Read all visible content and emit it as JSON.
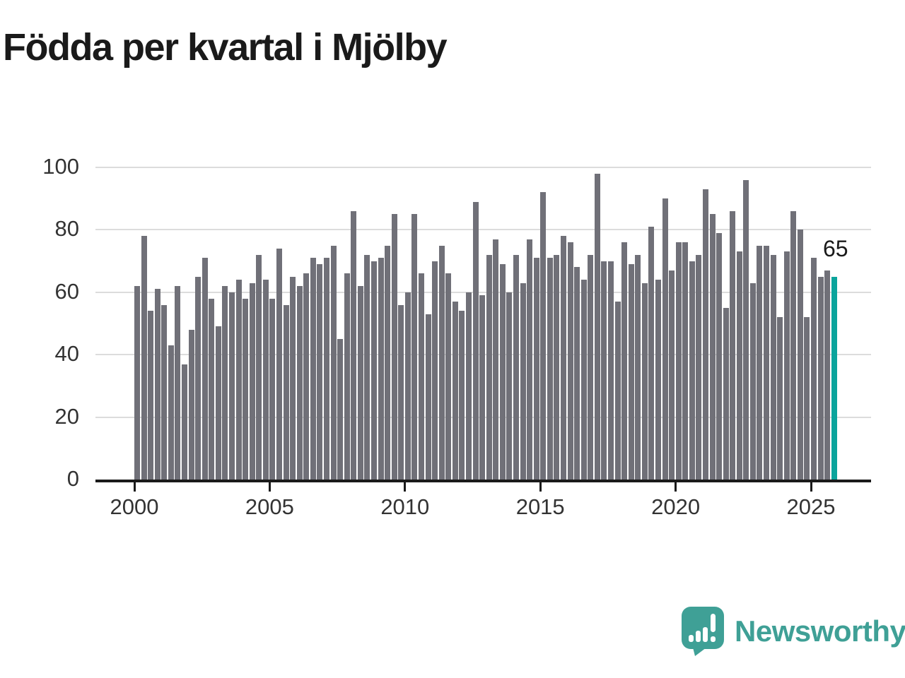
{
  "title": "Födda per kvartal i Mjölby",
  "annotation": {
    "last_value_label": "65"
  },
  "branding": {
    "name": "Newsworthy",
    "icon": "newsworthy-speech-bubble-chart-icon"
  },
  "colors": {
    "bar": "#707078",
    "highlight": "#0BA49C",
    "grid": "#dcdcdc",
    "axis": "#1a1a1a",
    "tick_label": "#333333",
    "title": "#1a1a1a",
    "brand": "#3FA096",
    "background": "#ffffff"
  },
  "chart_data": {
    "type": "bar",
    "title": "Födda per kvartal i Mjölby",
    "xlabel": "",
    "ylabel": "",
    "ylim": [
      0,
      100
    ],
    "grid": "horizontal",
    "y_ticks": [
      0,
      20,
      40,
      60,
      80,
      100
    ],
    "x_tick_labels": [
      "2000",
      "2005",
      "2010",
      "2015",
      "2020",
      "2025"
    ],
    "start_period": "2000-Q1",
    "end_period": "2025-Q4",
    "quarters_per_year": 4,
    "start_year": 2000,
    "highlight_last_bar": true,
    "last_value_label": "65",
    "values": [
      62,
      78,
      54,
      61,
      56,
      43,
      62,
      37,
      48,
      65,
      71,
      58,
      49,
      62,
      60,
      64,
      58,
      63,
      72,
      64,
      58,
      74,
      56,
      65,
      62,
      66,
      71,
      69,
      71,
      75,
      45,
      66,
      86,
      62,
      72,
      70,
      71,
      75,
      85,
      56,
      60,
      85,
      66,
      53,
      70,
      75,
      66,
      57,
      54,
      60,
      89,
      59,
      72,
      77,
      69,
      60,
      72,
      63,
      77,
      71,
      92,
      71,
      72,
      78,
      76,
      68,
      64,
      72,
      98,
      70,
      70,
      57,
      76,
      69,
      72,
      63,
      81,
      64,
      90,
      67,
      76,
      76,
      70,
      72,
      93,
      85,
      79,
      55,
      86,
      73,
      96,
      63,
      75,
      75,
      72,
      52,
      73,
      86,
      80,
      52,
      71,
      65,
      67,
      65
    ]
  }
}
